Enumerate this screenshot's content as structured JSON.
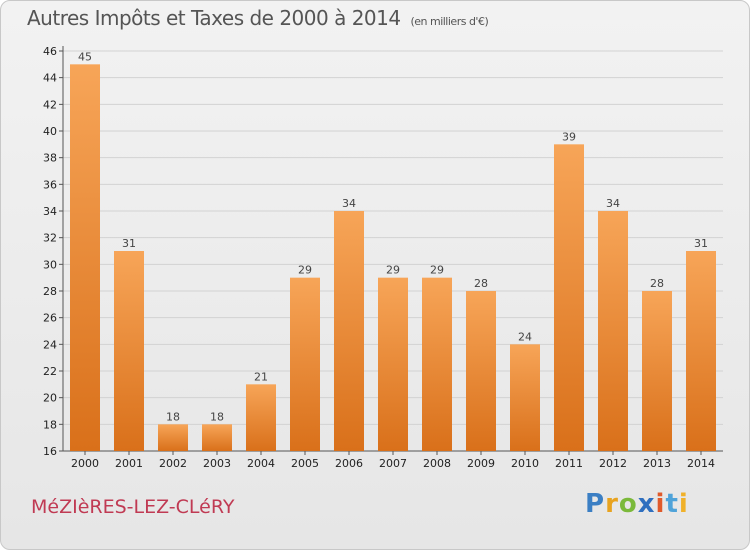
{
  "header": {
    "title": "Autres Impôts et Taxes de 2000 à 2014",
    "unit": "(en milliers d'€)"
  },
  "footer": {
    "commune": "MéZIèRES-LEZ-CLéRY",
    "logo": "Proxiti"
  },
  "colors": {
    "bar_top": "#f7a558",
    "bar_bottom": "#d9701a",
    "commune_text": "#c03a53"
  },
  "chart_data": {
    "type": "bar",
    "title": "Autres Impôts et Taxes de 2000 à 2014",
    "subtitle": "(en milliers d'€)",
    "categories": [
      "2000",
      "2001",
      "2002",
      "2003",
      "2004",
      "2005",
      "2006",
      "2007",
      "2008",
      "2009",
      "2010",
      "2011",
      "2012",
      "2013",
      "2014"
    ],
    "values": [
      45,
      31,
      18,
      18,
      21,
      29,
      34,
      29,
      29,
      28,
      24,
      39,
      34,
      28,
      31
    ],
    "ylim": [
      16,
      46
    ],
    "yticks": [
      16,
      18,
      20,
      22,
      24,
      26,
      28,
      30,
      32,
      34,
      36,
      38,
      40,
      42,
      44,
      46
    ],
    "grid": true,
    "legend": "none"
  }
}
